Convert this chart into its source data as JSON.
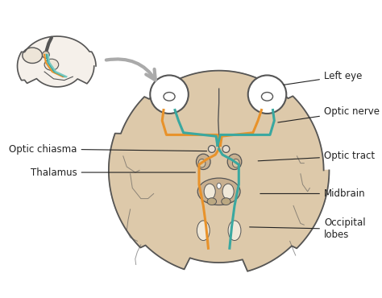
{
  "bg_color": "#ffffff",
  "brain_fill": "#ddc9aa",
  "brain_edge": "#555555",
  "brain_fill2": "#c8b090",
  "eye_fill": "#ffffff",
  "eye_edge": "#333333",
  "orange_color": "#e8922a",
  "teal_color": "#3aa8a0",
  "label_color": "#222222",
  "arrow_color": "#aaaaaa",
  "labels": {
    "left_eye": "Left eye",
    "optic_nerve": "Optic nerve",
    "optic_chiasma": "Optic chiasma",
    "optic_tract": "Optic tract",
    "thalamus": "Thalamus",
    "midbrain": "Midbrain",
    "occipital_lobes": "Occipital\nlobes"
  },
  "fontsize": 8.5,
  "title": ""
}
